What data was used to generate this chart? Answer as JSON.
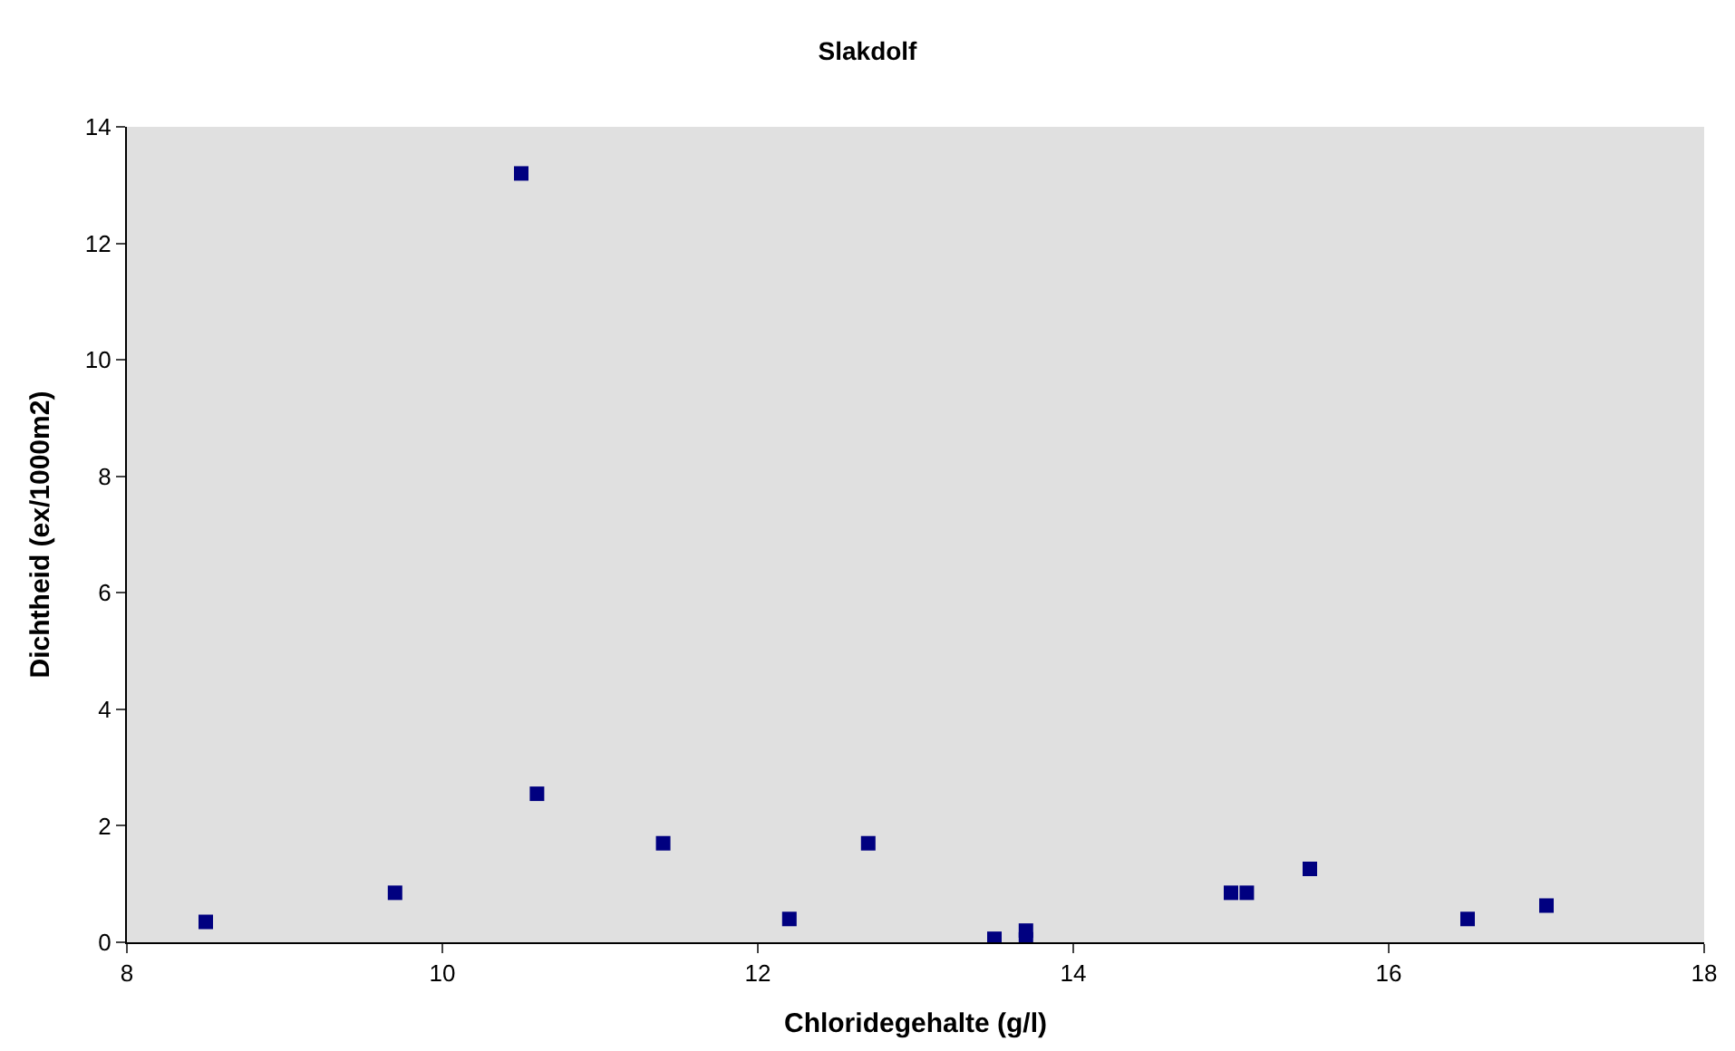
{
  "chart_data": {
    "type": "scatter",
    "title": "Slakdolf",
    "xlabel": "Chloridegehalte (g/l)",
    "ylabel": "Dichtheid (ex/1000m2)",
    "x": [
      8.5,
      9.7,
      10.5,
      10.6,
      11.4,
      12.2,
      12.7,
      13.5,
      13.7,
      13.7,
      15.0,
      15.1,
      15.5,
      16.5,
      17.0
    ],
    "series": [
      {
        "color": "#000080",
        "values": [
          0.35,
          0.85,
          13.2,
          2.55,
          1.7,
          0.4,
          1.7,
          0.06,
          0.05,
          0.2,
          0.85,
          0.85,
          1.26,
          0.4,
          0.63
        ]
      }
    ],
    "xlim": [
      8,
      18
    ],
    "xticks": [
      8,
      10,
      12,
      14,
      16,
      18
    ],
    "ylim": [
      0,
      14
    ],
    "yticks": [
      0,
      2,
      4,
      6,
      8,
      10,
      12,
      14
    ],
    "marker": "square",
    "grid": false
  }
}
